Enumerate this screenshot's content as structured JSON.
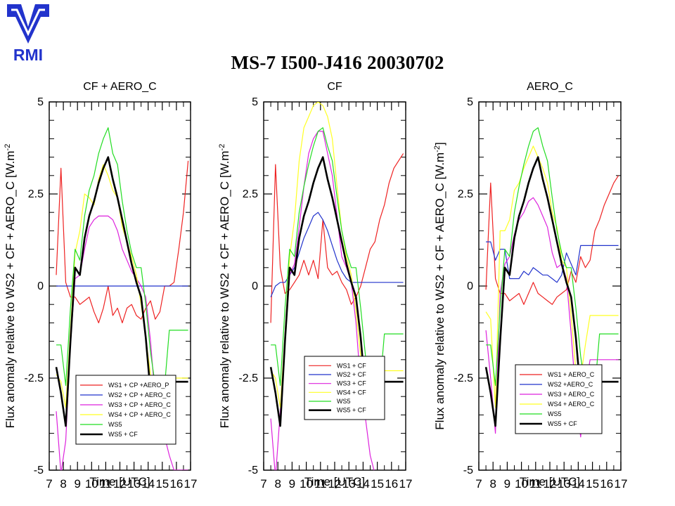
{
  "logo": {
    "text": "RMI",
    "color": "#2233cc"
  },
  "title": "MS-7 I500-J416 20030702",
  "chart_data": [
    {
      "type": "line",
      "title": "CF + AERO_C",
      "xlabel": "Time [UTC]",
      "ylabel": "Flux anomaly relative to WS2 + CF + AERO_C [W.m",
      "ylabel_sup": "-2",
      "ylabel_tail": "",
      "xlim": [
        7,
        17
      ],
      "ylim": [
        -5,
        5
      ],
      "x_ticks": [
        7,
        8,
        9,
        10,
        11,
        12,
        13,
        14,
        15,
        16,
        17
      ],
      "y_ticks": [
        -5,
        -2.5,
        0,
        2.5,
        5
      ],
      "y_tick_labels": [
        "-5",
        "-2.5",
        "0",
        "2.5",
        "5"
      ],
      "grid": false,
      "legend_position": "bottom-right",
      "x": [
        7.5,
        7.83,
        8.17,
        8.5,
        8.83,
        9.17,
        9.5,
        9.83,
        10.17,
        10.5,
        10.83,
        11.17,
        11.5,
        11.83,
        12.17,
        12.5,
        12.83,
        13.17,
        13.5,
        13.83,
        14.17,
        14.5,
        14.83,
        15.17,
        15.5,
        15.83,
        16.17,
        16.5,
        16.83
      ],
      "series": [
        {
          "name": "WS1 + CP +AERO_P",
          "color": "#ee2222",
          "width": 1.2,
          "values": [
            0.3,
            3.2,
            0.1,
            -0.3,
            -0.3,
            -0.5,
            -0.4,
            -0.3,
            -0.7,
            -1.0,
            -0.6,
            0.0,
            -0.8,
            -0.6,
            -1.0,
            -0.6,
            -0.5,
            -0.8,
            -0.9,
            -0.6,
            -0.4,
            -0.9,
            -0.7,
            0.0,
            0.0,
            0.1,
            1.0,
            2.0,
            3.4
          ]
        },
        {
          "name": "WS2 + CP + AERO_C",
          "color": "#2233cc",
          "width": 1.2,
          "values": [
            0,
            0,
            0,
            0,
            0,
            0,
            0,
            0,
            0,
            0,
            0,
            0,
            0,
            0,
            0,
            0,
            0,
            0,
            0,
            0,
            0,
            0,
            0,
            0,
            0,
            0,
            0,
            0,
            0
          ]
        },
        {
          "name": "WS3 + CP + AERO_C",
          "color": "#dd22dd",
          "width": 1.2,
          "values": [
            -3.4,
            -5.1,
            -4.2,
            -1.6,
            0.2,
            0.3,
            1.0,
            1.6,
            1.8,
            1.9,
            1.9,
            1.9,
            1.8,
            1.5,
            1.0,
            0.7,
            0.4,
            0.2,
            0.0,
            -0.3,
            -1.5,
            -3.1,
            -3.5,
            -4.1,
            -4.6,
            -5.0,
            -5.0,
            -5.0,
            -5.0
          ]
        },
        {
          "name": "WS4 + CP + AERO_C",
          "color": "#ffff22",
          "width": 1.2,
          "values": [
            -2.4,
            -2.6,
            -3.3,
            -1.2,
            0.9,
            1.5,
            2.5,
            2.4,
            2.2,
            2.9,
            3.3,
            3.0,
            2.6,
            2.4,
            1.6,
            1.2,
            0.8,
            0.3,
            -0.5,
            -1.4,
            -2.4,
            -2.9,
            -2.7,
            -2.6,
            -2.5,
            -2.5,
            -2.5,
            -2.5,
            -2.5
          ]
        },
        {
          "name": "WS5",
          "color": "#22dd22",
          "width": 1.2,
          "values": [
            -1.6,
            -1.6,
            -2.7,
            -0.6,
            1.0,
            0.7,
            1.9,
            2.6,
            3.0,
            3.6,
            4.0,
            4.3,
            3.6,
            3.3,
            2.3,
            1.5,
            0.9,
            0.5,
            0.5,
            -0.5,
            -1.8,
            -2.7,
            -3.2,
            -2.7,
            -1.2,
            -1.2,
            -1.2,
            -1.2,
            -1.2
          ]
        },
        {
          "name": "WS5 + CF",
          "color": "#000000",
          "width": 2.6,
          "values": [
            -2.2,
            -2.9,
            -3.8,
            -1.5,
            0.5,
            0.3,
            1.3,
            1.9,
            2.3,
            2.8,
            3.2,
            3.5,
            2.9,
            2.4,
            1.8,
            1.2,
            0.6,
            0.1,
            -0.3,
            -1.4,
            -2.9,
            -3.5,
            -2.8,
            -2.6,
            -2.6,
            -2.6,
            -2.6,
            -2.6,
            -2.6
          ]
        }
      ]
    },
    {
      "type": "line",
      "title": "CF",
      "xlabel": "Time [UTC]",
      "ylabel": "Flux anomaly relative to WS2 + CF + AERO_C [W.m",
      "ylabel_sup": "-2",
      "ylabel_tail": "",
      "xlim": [
        7,
        17
      ],
      "ylim": [
        -5,
        5
      ],
      "x_ticks": [
        7,
        8,
        9,
        10,
        11,
        12,
        13,
        14,
        15,
        16,
        17
      ],
      "y_ticks": [
        -5,
        -2.5,
        0,
        2.5,
        5
      ],
      "y_tick_labels": [
        "-5",
        "-2.5",
        "0",
        "2.5",
        "5"
      ],
      "grid": false,
      "legend_position": "bottom-right",
      "x": [
        7.5,
        7.83,
        8.17,
        8.5,
        8.83,
        9.17,
        9.5,
        9.83,
        10.17,
        10.5,
        10.83,
        11.17,
        11.5,
        11.83,
        12.17,
        12.5,
        12.83,
        13.17,
        13.5,
        13.83,
        14.17,
        14.5,
        14.83,
        15.17,
        15.5,
        15.83,
        16.17,
        16.5,
        16.83
      ],
      "series": [
        {
          "name": "WS1 + CF",
          "color": "#ee2222",
          "width": 1.2,
          "values": [
            -1.0,
            3.3,
            0.5,
            -0.2,
            -0.1,
            0.1,
            0.3,
            0.7,
            0.3,
            0.7,
            0.2,
            1.8,
            0.5,
            0.3,
            0.4,
            0.1,
            -0.1,
            -0.5,
            -0.3,
            0.0,
            0.5,
            1.0,
            1.2,
            1.8,
            2.2,
            2.8,
            3.2,
            3.4,
            3.6
          ]
        },
        {
          "name": "WS2 + CF",
          "color": "#2233cc",
          "width": 1.2,
          "values": [
            -0.3,
            0.0,
            0.1,
            0.1,
            0.3,
            0.5,
            0.9,
            1.3,
            1.6,
            1.9,
            2.0,
            1.8,
            1.5,
            1.1,
            0.7,
            0.4,
            0.2,
            0.1,
            0.1,
            0.1,
            0.1,
            0.1,
            0.1,
            0.1,
            0.1,
            0.1,
            0.1,
            0.1,
            0.1
          ]
        },
        {
          "name": "WS3 + CF",
          "color": "#dd22dd",
          "width": 1.2,
          "values": [
            -3.6,
            -5.2,
            -3.4,
            -1.5,
            0.3,
            0.6,
            1.6,
            2.7,
            3.6,
            4.0,
            4.2,
            4.2,
            3.6,
            3.0,
            1.9,
            0.8,
            0.5,
            0.1,
            -1.0,
            -2.7,
            -3.6,
            -4.6,
            -5.1,
            -5.1,
            -5.1,
            -5.1,
            -5.1,
            -5.1,
            -5.1
          ]
        },
        {
          "name": "WS4 + CF",
          "color": "#ffff22",
          "width": 1.2,
          "values": [
            -2.3,
            -2.5,
            -3.3,
            -1.3,
            0.8,
            1.8,
            3.4,
            4.3,
            4.6,
            4.9,
            5.0,
            4.9,
            4.6,
            4.0,
            2.7,
            1.5,
            0.8,
            0.3,
            -0.7,
            -1.9,
            -2.9,
            -2.6,
            -2.3,
            -2.3,
            -2.3,
            -2.3,
            -2.3,
            -2.3,
            -2.3
          ]
        },
        {
          "name": "WS5",
          "color": "#22dd22",
          "width": 1.2,
          "values": [
            -1.6,
            -1.6,
            -2.7,
            -0.6,
            1.0,
            0.8,
            2.0,
            2.7,
            3.3,
            3.8,
            4.2,
            4.3,
            3.8,
            3.4,
            2.4,
            1.5,
            0.9,
            0.5,
            0.5,
            -0.6,
            -1.9,
            -2.8,
            -3.3,
            -2.8,
            -1.3,
            -1.3,
            -1.3,
            -1.3,
            -1.3
          ]
        },
        {
          "name": "WS5 + CF",
          "color": "#000000",
          "width": 2.6,
          "values": [
            -2.2,
            -2.9,
            -3.8,
            -1.5,
            0.5,
            0.3,
            1.3,
            1.9,
            2.3,
            2.8,
            3.2,
            3.5,
            2.9,
            2.4,
            1.8,
            1.2,
            0.6,
            0.1,
            -0.3,
            -1.4,
            -2.9,
            -3.5,
            -2.8,
            -2.6,
            -2.6,
            -2.6,
            -2.6,
            -2.6,
            -2.6
          ]
        }
      ]
    },
    {
      "type": "line",
      "title": "AERO_C",
      "xlabel": "Time [UTC]",
      "ylabel": "Flux anomaly relative to WS2 + CF + AERO_C [W.m",
      "ylabel_sup": "-2",
      "ylabel_tail": "]",
      "xlim": [
        7,
        17
      ],
      "ylim": [
        -5,
        5
      ],
      "x_ticks": [
        7,
        8,
        9,
        10,
        11,
        12,
        13,
        14,
        15,
        16,
        17
      ],
      "y_ticks": [
        -5,
        -2.5,
        0,
        2.5,
        5
      ],
      "y_tick_labels": [
        "-5",
        "-2.5",
        "0",
        "2.5",
        "5"
      ],
      "grid": false,
      "legend_position": "bottom-right",
      "x": [
        7.5,
        7.83,
        8.17,
        8.5,
        8.83,
        9.17,
        9.5,
        9.83,
        10.17,
        10.5,
        10.83,
        11.17,
        11.5,
        11.83,
        12.17,
        12.5,
        12.83,
        13.17,
        13.5,
        13.83,
        14.17,
        14.5,
        14.83,
        15.17,
        15.5,
        15.83,
        16.17,
        16.5,
        16.83
      ],
      "series": [
        {
          "name": "WS1 + AERO_C",
          "color": "#ee2222",
          "width": 1.2,
          "values": [
            -0.1,
            2.8,
            0.2,
            -0.2,
            -0.2,
            -0.4,
            -0.3,
            -0.2,
            -0.5,
            -0.2,
            0.1,
            -0.2,
            -0.3,
            -0.4,
            -0.5,
            -0.3,
            -0.2,
            -0.1,
            0.4,
            0.1,
            0.8,
            0.5,
            0.7,
            1.5,
            1.8,
            2.2,
            2.5,
            2.8,
            3.0
          ]
        },
        {
          "name": "WS2 +AERO_C",
          "color": "#2233cc",
          "width": 1.2,
          "values": [
            1.2,
            1.2,
            0.7,
            1.0,
            1.0,
            0.2,
            0.2,
            0.2,
            0.4,
            0.3,
            0.5,
            0.4,
            0.3,
            0.3,
            0.2,
            0.1,
            0.3,
            0.9,
            0.6,
            0.3,
            1.1,
            1.1,
            1.1,
            1.1,
            1.1,
            1.1,
            1.1,
            1.1,
            1.1
          ]
        },
        {
          "name": "WS3 + AERO_C",
          "color": "#dd22dd",
          "width": 1.2,
          "values": [
            -1.2,
            -2.5,
            -4.0,
            -0.2,
            0.6,
            0.8,
            1.4,
            1.8,
            2.0,
            2.3,
            2.4,
            2.2,
            1.9,
            1.6,
            0.9,
            0.5,
            0.6,
            0.2,
            -1.3,
            -3.0,
            -4.1,
            -2.8,
            -2.0,
            -2.0,
            -2.0,
            -2.0,
            -2.0,
            -2.0,
            -2.0
          ]
        },
        {
          "name": "WS4 + AERO_C",
          "color": "#ffff22",
          "width": 1.2,
          "values": [
            -0.7,
            -0.9,
            -3.3,
            1.5,
            1.5,
            1.8,
            2.6,
            2.8,
            3.2,
            3.5,
            3.8,
            3.5,
            3.2,
            2.8,
            2.0,
            1.6,
            0.7,
            0.5,
            -0.8,
            -2.3,
            -2.5,
            -1.6,
            -0.8,
            -0.8,
            -0.8,
            -0.8,
            -0.8,
            -0.8,
            -0.8
          ]
        },
        {
          "name": "WS5",
          "color": "#22dd22",
          "width": 1.2,
          "values": [
            -1.6,
            -1.6,
            -2.7,
            -0.6,
            1.0,
            0.8,
            2.0,
            2.7,
            3.3,
            3.8,
            4.2,
            4.3,
            3.8,
            3.4,
            2.4,
            1.5,
            0.9,
            0.5,
            0.5,
            -0.6,
            -1.9,
            -2.8,
            -3.3,
            -2.8,
            -1.3,
            -1.3,
            -1.3,
            -1.3,
            -1.3
          ]
        },
        {
          "name": "WS5 + CF",
          "color": "#000000",
          "width": 2.6,
          "values": [
            -2.2,
            -2.9,
            -3.8,
            -1.5,
            0.5,
            0.3,
            1.3,
            1.9,
            2.3,
            2.8,
            3.2,
            3.5,
            2.9,
            2.4,
            1.8,
            1.2,
            0.6,
            0.1,
            -0.3,
            -1.4,
            -2.9,
            -3.5,
            -2.8,
            -2.6,
            -2.6,
            -2.6,
            -2.6,
            -2.6,
            -2.6
          ]
        }
      ]
    }
  ]
}
